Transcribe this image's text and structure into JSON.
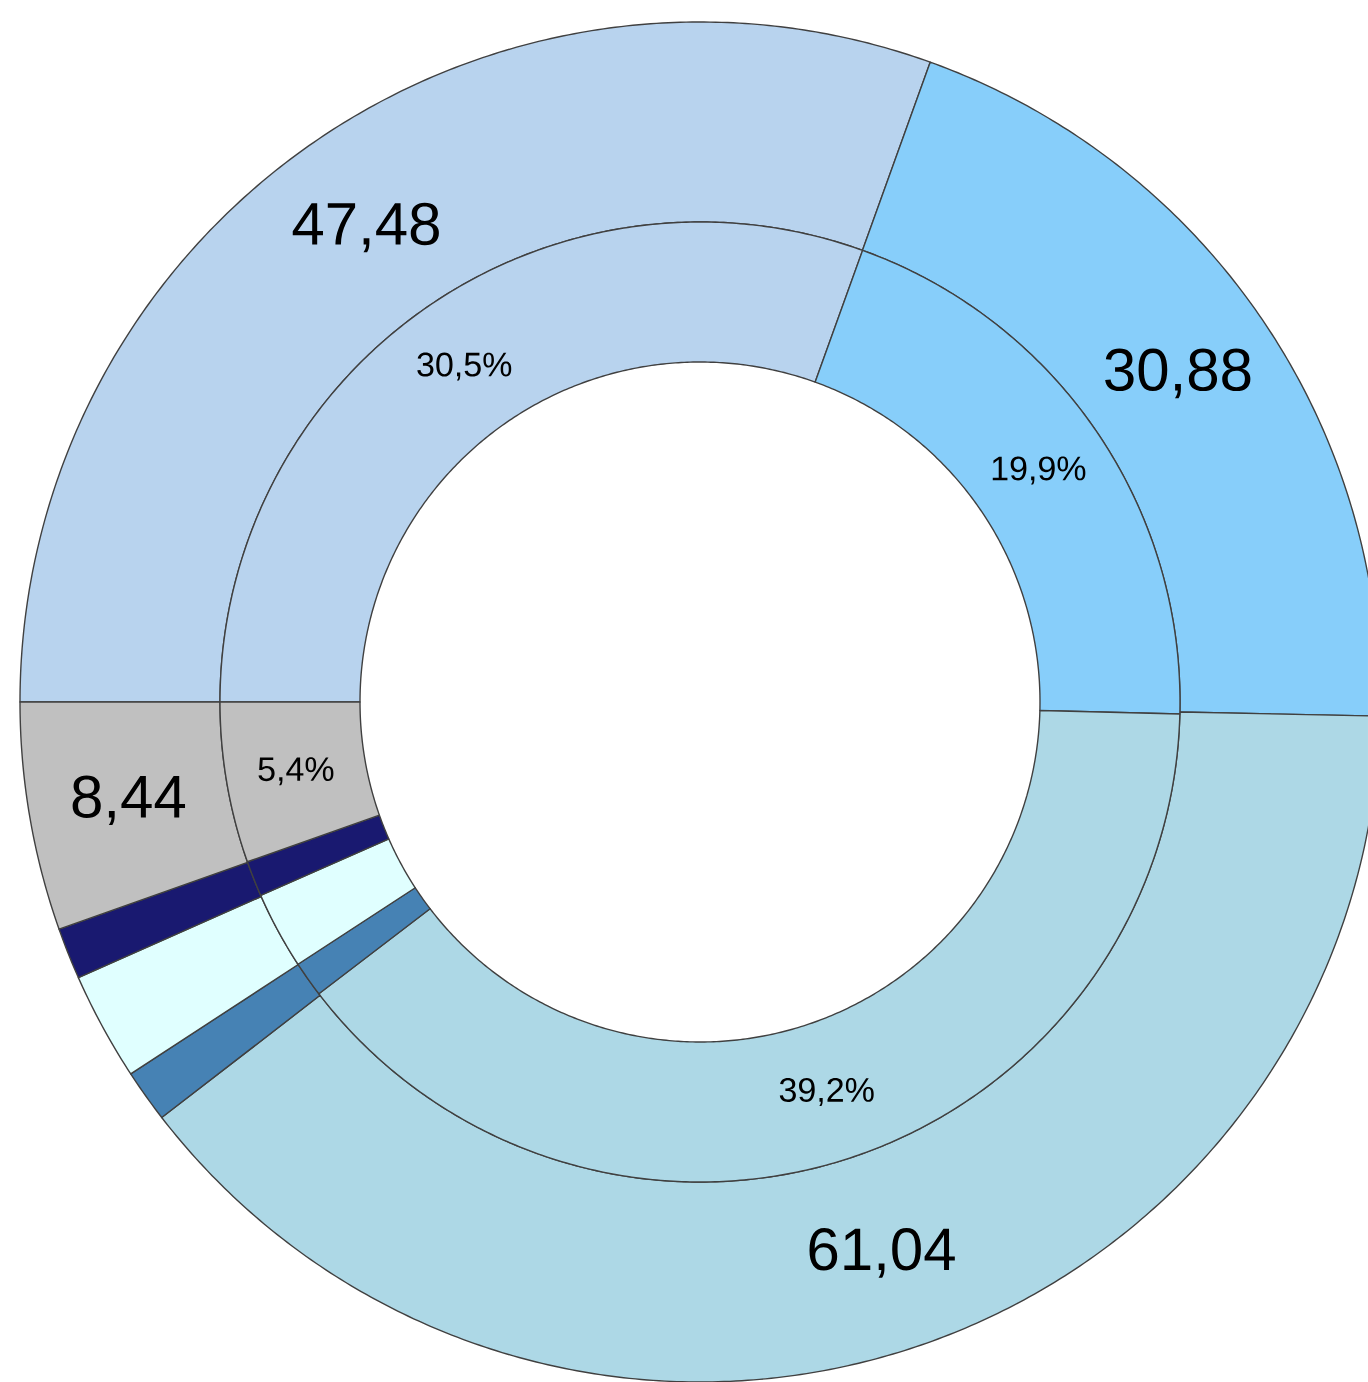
{
  "chart_data": {
    "type": "donut",
    "categories": [
      null,
      null,
      null,
      null,
      null,
      null,
      null
    ],
    "colors": [
      "#b8d3ee",
      "#87cefa",
      "#add8e6",
      "#4682b4",
      "#e0ffff",
      "#191970",
      "#c0c0c0"
    ],
    "series": [
      {
        "values": [
          47.48,
          30.88,
          61.04,
          1.95,
          4.0,
          1.9,
          8.44
        ],
        "value_labels": [
          "47,48",
          "30,88",
          "61,04",
          null,
          null,
          null,
          "8,44"
        ]
      },
      {
        "values": [
          30.5,
          19.9,
          39.2,
          1.2,
          2.6,
          1.2,
          5.4
        ],
        "value_labels": [
          "30,5%",
          "19,9%",
          "39,2%",
          null,
          null,
          null,
          "5,4%"
        ]
      }
    ]
  }
}
